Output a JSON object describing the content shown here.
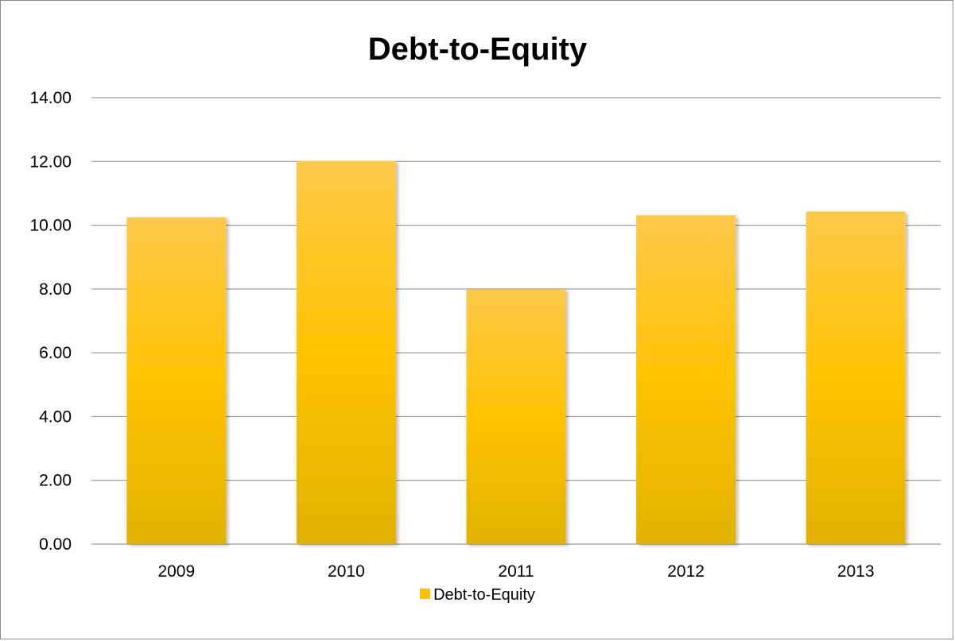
{
  "chart_data": {
    "type": "bar",
    "title": "Debt-to-Equity",
    "categories": [
      "2009",
      "2010",
      "2011",
      "2012",
      "2013"
    ],
    "series": [
      {
        "name": "Debt-to-Equity",
        "values": [
          10.25,
          12.02,
          7.99,
          10.31,
          10.43
        ]
      }
    ],
    "xlabel": "",
    "ylabel": "",
    "ylim": [
      0,
      14
    ],
    "yticks": [
      "0.00",
      "2.00",
      "4.00",
      "6.00",
      "8.00",
      "10.00",
      "12.00",
      "14.00"
    ],
    "grid": true,
    "legend_position": "bottom",
    "colors": {
      "bar_top": "#FFC84A",
      "bar_mid": "#FFC300",
      "bar_bottom": "#E2B200",
      "gridline": "#868686",
      "swatch": "#FFC000"
    }
  }
}
